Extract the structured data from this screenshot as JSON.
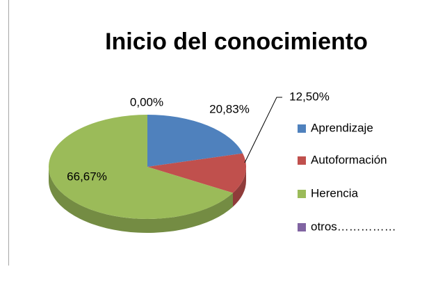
{
  "chart_data": {
    "type": "pie",
    "title": "Inicio del conocimiento",
    "categories": [
      "Aprendizaje",
      "Autoformación",
      "Herencia",
      "otros……………"
    ],
    "values": [
      20.83,
      12.5,
      66.67,
      0
    ],
    "value_labels": [
      "20,83%",
      "12,50%",
      "66,67%",
      "0,00%"
    ],
    "colors": [
      "#4f81bd",
      "#c0504d",
      "#9bbb59",
      "#8064a2"
    ],
    "legend": "right"
  }
}
